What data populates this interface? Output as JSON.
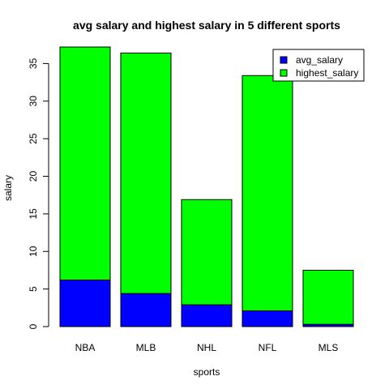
{
  "chart_data": {
    "type": "bar",
    "stacked": true,
    "title": "avg salary and highest salary in 5 different sports",
    "xlabel": "sports",
    "ylabel": "salary",
    "categories": [
      "NBA",
      "MLB",
      "NHL",
      "NFL",
      "MLS"
    ],
    "series": [
      {
        "name": "avg_salary",
        "color": "#0000ff",
        "values": [
          6.2,
          4.4,
          2.9,
          2.1,
          0.3
        ]
      },
      {
        "name": "highest_salary",
        "color": "#00ff00",
        "values": [
          31.0,
          32.0,
          14.0,
          31.3,
          7.2
        ]
      }
    ],
    "ylim": [
      0,
      37.2
    ],
    "yticks": [
      0,
      5,
      10,
      15,
      20,
      25,
      30,
      35
    ],
    "grid": false,
    "legend_position": "top-right"
  }
}
